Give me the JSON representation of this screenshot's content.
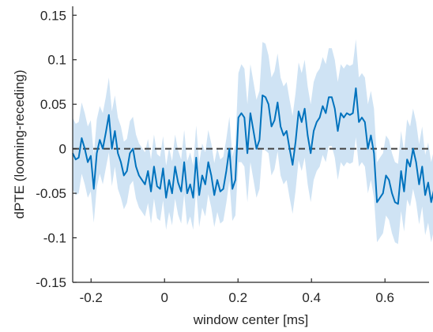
{
  "chart_data": {
    "type": "line",
    "title": "",
    "xlabel": "window center [ms]",
    "ylabel": "dPTE (looming-receding)",
    "xlim": [
      -0.25,
      0.72
    ],
    "ylim": [
      -0.15,
      0.16
    ],
    "xticks": [
      -0.2,
      0,
      0.2,
      0.4,
      0.6
    ],
    "xtick_labels": [
      "-0.2",
      "0",
      "0.2",
      "0.4",
      "0.6"
    ],
    "yticks": [
      -0.15,
      -0.1,
      -0.05,
      0,
      0.05,
      0.1,
      0.15
    ],
    "ytick_labels": [
      "-0.15",
      "-0.1",
      "-0.05",
      "0",
      "0.05",
      "0.1",
      "0.15"
    ],
    "grid": false,
    "legend": "none",
    "colors": {
      "line": "#0072bd",
      "band": "#cfe3f4",
      "zero_line": "#404040",
      "axis": "#262626"
    },
    "reference_line": {
      "y": 0,
      "style": "dashed"
    },
    "series": [
      {
        "x_start": -0.25,
        "x_step": 0.0082,
        "values": [
          -0.005,
          -0.012,
          -0.01,
          0.012,
          0.0,
          -0.015,
          -0.008,
          -0.045,
          -0.005,
          0.01,
          0.0,
          0.018,
          0.038,
          0.0,
          0.02,
          -0.005,
          -0.015,
          -0.03,
          -0.025,
          -0.005,
          0.0,
          -0.02,
          -0.03,
          -0.035,
          -0.04,
          -0.025,
          -0.048,
          -0.02,
          -0.042,
          -0.045,
          -0.022,
          -0.055,
          -0.035,
          -0.05,
          -0.02,
          -0.038,
          -0.048,
          -0.015,
          -0.05,
          -0.04,
          -0.055,
          -0.01,
          -0.052,
          -0.03,
          -0.04,
          -0.015,
          -0.03,
          -0.052,
          -0.035,
          -0.048,
          -0.045,
          -0.025,
          0.0,
          -0.045,
          -0.035,
          0.035,
          0.04,
          0.035,
          -0.005,
          0.04,
          0.02,
          0.0,
          0.01,
          0.06,
          0.058,
          0.05,
          0.025,
          0.032,
          0.052,
          0.025,
          0.015,
          0.02,
          0.0,
          -0.018,
          0.008,
          0.042,
          0.03,
          0.045,
          0.015,
          -0.005,
          0.02,
          0.03,
          0.035,
          0.048,
          0.04,
          0.058,
          0.058,
          0.045,
          0.02,
          0.04,
          0.035,
          0.04,
          0.038,
          0.04,
          0.068,
          0.03,
          0.035,
          0.03,
          0.0,
          0.015,
          -0.005,
          -0.06,
          -0.055,
          -0.05,
          -0.03,
          -0.035,
          -0.05,
          -0.06,
          -0.062,
          -0.025,
          -0.048,
          -0.012,
          -0.02,
          0.0,
          -0.015,
          -0.04,
          -0.02,
          -0.052,
          -0.038,
          -0.06,
          -0.045,
          -0.038,
          -0.048,
          -0.052,
          -0.02,
          0.002,
          0.005
        ],
        "band_halfwidth": [
          0.04,
          0.04,
          0.04,
          0.04,
          0.04,
          0.04,
          0.04,
          0.038,
          0.038,
          0.038,
          0.04,
          0.04,
          0.042,
          0.042,
          0.04,
          0.04,
          0.04,
          0.038,
          0.036,
          0.036,
          0.036,
          0.036,
          0.036,
          0.036,
          0.036,
          0.036,
          0.036,
          0.036,
          0.036,
          0.036,
          0.036,
          0.036,
          0.036,
          0.036,
          0.036,
          0.036,
          0.036,
          0.036,
          0.036,
          0.036,
          0.036,
          0.036,
          0.036,
          0.036,
          0.036,
          0.036,
          0.036,
          0.036,
          0.036,
          0.036,
          0.036,
          0.036,
          0.036,
          0.036,
          0.04,
          0.05,
          0.055,
          0.055,
          0.055,
          0.055,
          0.055,
          0.055,
          0.055,
          0.06,
          0.06,
          0.055,
          0.055,
          0.055,
          0.055,
          0.055,
          0.055,
          0.055,
          0.055,
          0.055,
          0.055,
          0.055,
          0.055,
          0.055,
          0.055,
          0.055,
          0.055,
          0.055,
          0.055,
          0.055,
          0.055,
          0.055,
          0.055,
          0.055,
          0.055,
          0.055,
          0.055,
          0.055,
          0.055,
          0.055,
          0.055,
          0.05,
          0.05,
          0.05,
          0.05,
          0.05,
          0.05,
          0.045,
          0.045,
          0.045,
          0.045,
          0.045,
          0.045,
          0.045,
          0.045,
          0.045,
          0.045,
          0.045,
          0.045,
          0.045,
          0.045,
          0.045,
          0.045,
          0.045,
          0.045,
          0.045,
          0.045,
          0.045,
          0.045,
          0.045,
          0.045,
          0.045,
          0.045
        ]
      }
    ]
  }
}
